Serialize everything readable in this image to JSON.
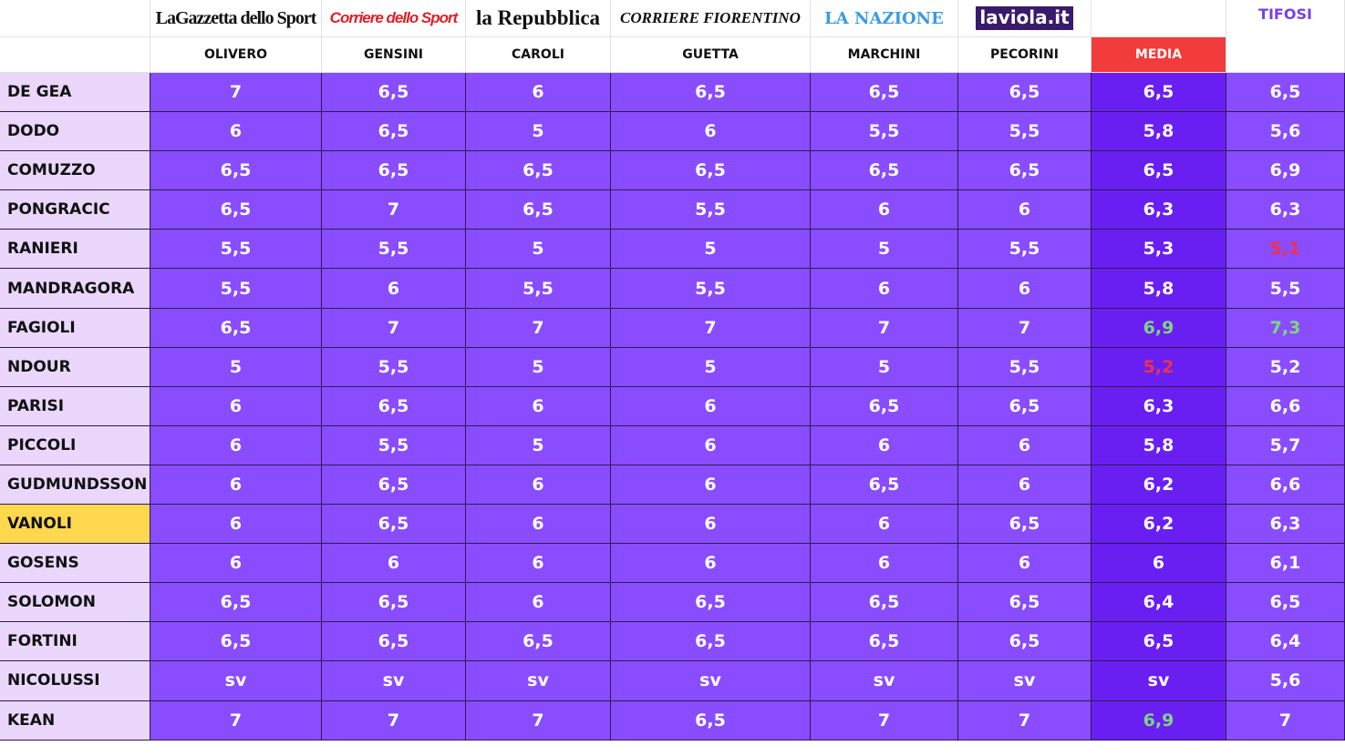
{
  "table": {
    "sources": [
      "LaGazzetta dello Sport",
      "Corriere dello Sport",
      "la Repubblica",
      "CORRIERE FIORENTINO",
      "LA NAZIONE",
      "laviola.it"
    ],
    "tifosi_label": "TIFOSI",
    "reporters": [
      "OLIVERO",
      "GENSINI",
      "CAROLI",
      "GUETTA",
      "MARCHINI",
      "PECORINI"
    ],
    "media_label": "MEDIA",
    "rows": [
      {
        "name": "DE GEA",
        "values": [
          "7",
          "6,5",
          "6",
          "6,5",
          "6,5",
          "6,5",
          "6,5",
          "6,5"
        ]
      },
      {
        "name": "DODO",
        "values": [
          "6",
          "6,5",
          "5",
          "6",
          "5,5",
          "5,5",
          "5,8",
          "5,6"
        ]
      },
      {
        "name": "COMUZZO",
        "values": [
          "6,5",
          "6,5",
          "6,5",
          "6,5",
          "6,5",
          "6,5",
          "6,5",
          "6,9"
        ]
      },
      {
        "name": "PONGRACIC",
        "values": [
          "6,5",
          "7",
          "6,5",
          "5,5",
          "6",
          "6",
          "6,3",
          "6,3"
        ]
      },
      {
        "name": "RANIERI",
        "values": [
          "5,5",
          "5,5",
          "5",
          "5",
          "5",
          "5,5",
          "5,3",
          "5,1"
        ],
        "value_colors": [
          null,
          null,
          null,
          null,
          null,
          null,
          null,
          "#f0304a"
        ]
      },
      {
        "name": "MANDRAGORA",
        "values": [
          "5,5",
          "6",
          "5,5",
          "5,5",
          "6",
          "6",
          "5,8",
          "5,5"
        ]
      },
      {
        "name": "FAGIOLI",
        "values": [
          "6,5",
          "7",
          "7",
          "7",
          "7",
          "7",
          "6,9",
          "7,3"
        ],
        "value_colors": [
          null,
          null,
          null,
          null,
          null,
          null,
          "#7ed67e",
          "#7ed67e"
        ]
      },
      {
        "name": "NDOUR",
        "values": [
          "5",
          "5,5",
          "5",
          "5",
          "5",
          "5,5",
          "5,2",
          "5,2"
        ],
        "value_colors": [
          null,
          null,
          null,
          null,
          null,
          null,
          "#f0304a",
          null
        ]
      },
      {
        "name": "PARISI",
        "values": [
          "6",
          "6,5",
          "6",
          "6",
          "6,5",
          "6,5",
          "6,3",
          "6,6"
        ]
      },
      {
        "name": "PICCOLI",
        "values": [
          "6",
          "5,5",
          "5",
          "6",
          "6",
          "6",
          "5,8",
          "5,7"
        ]
      },
      {
        "name": "GUDMUNDSSON",
        "values": [
          "6",
          "6,5",
          "6",
          "6",
          "6,5",
          "6",
          "6,2",
          "6,6"
        ]
      },
      {
        "name": "VANOLI",
        "name_color": "#ffd84f",
        "values": [
          "6",
          "6,5",
          "6",
          "6",
          "6",
          "6,5",
          "6,2",
          "6,3"
        ]
      },
      {
        "name": "GOSENS",
        "values": [
          "6",
          "6",
          "6",
          "6",
          "6",
          "6",
          "6",
          "6,1"
        ]
      },
      {
        "name": "SOLOMON",
        "values": [
          "6,5",
          "6,5",
          "6",
          "6,5",
          "6,5",
          "6,5",
          "6,4",
          "6,5"
        ]
      },
      {
        "name": "FORTINI",
        "values": [
          "6,5",
          "6,5",
          "6,5",
          "6,5",
          "6,5",
          "6,5",
          "6,5",
          "6,4"
        ]
      },
      {
        "name": "NICOLUSSI",
        "values": [
          "sv",
          "sv",
          "sv",
          "sv",
          "sv",
          "sv",
          "sv",
          "5,6"
        ]
      },
      {
        "name": "KEAN",
        "values": [
          "7",
          "7",
          "7",
          "6,5",
          "7",
          "7",
          "6,9",
          "7"
        ],
        "value_colors": [
          null,
          null,
          null,
          null,
          null,
          null,
          "#7ed67e",
          null
        ]
      }
    ]
  }
}
